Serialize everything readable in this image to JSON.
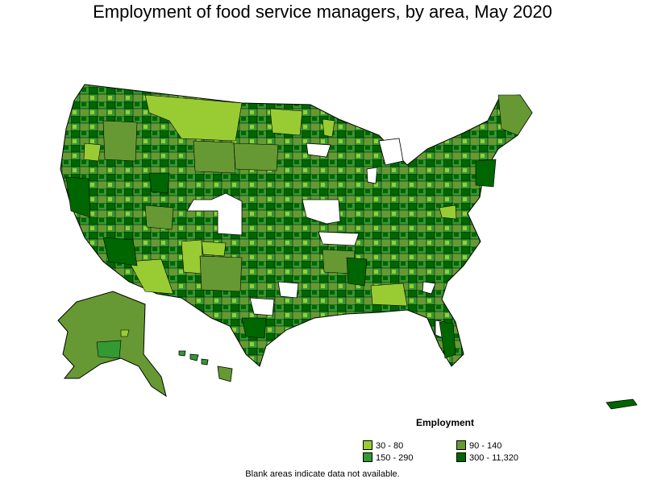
{
  "title": "Employment of food service managers, by area, May 2020",
  "legend": {
    "title": "Employment",
    "items": [
      {
        "label": "30 - 80",
        "color": "#99cc33"
      },
      {
        "label": "90 - 140",
        "color": "#669933"
      },
      {
        "label": "150 - 290",
        "color": "#339933"
      },
      {
        "label": "300 - 11,320",
        "color": "#006600"
      }
    ]
  },
  "footnote": "Blank areas indicate data not available.",
  "colors": {
    "low": "#99cc33",
    "mid_low": "#669933",
    "mid_high": "#339933",
    "high": "#006600",
    "no_data": "#ffffff",
    "border": "#000000"
  }
}
